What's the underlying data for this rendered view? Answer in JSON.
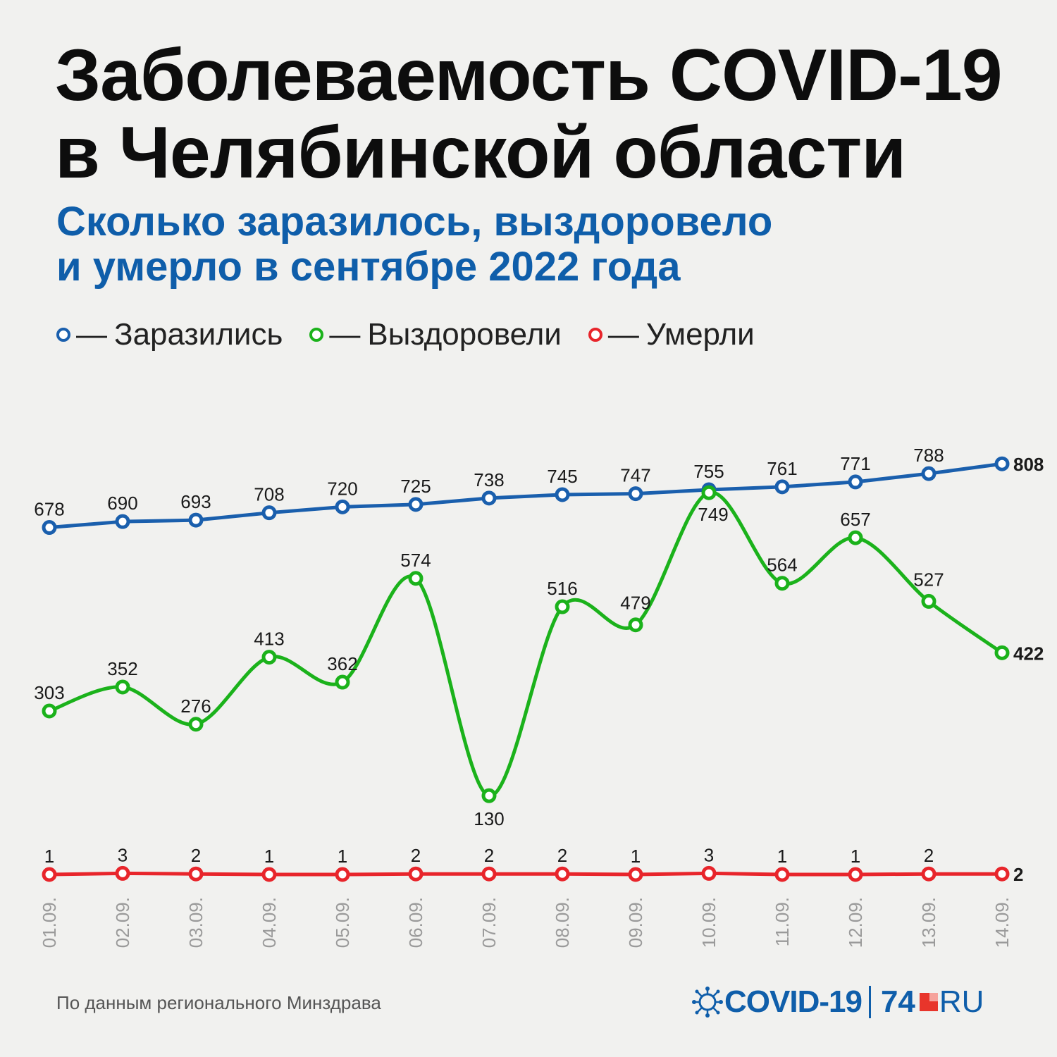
{
  "title": {
    "line1": "Заболеваемость COVID-19",
    "line2": "в Челябинской области"
  },
  "subtitle": {
    "line1": "Сколько заразилось, выздоровело",
    "line2": "и умерло в сентябре 2022 года"
  },
  "legend": [
    {
      "label": "Заразились",
      "color": "#1a5fad"
    },
    {
      "label": "Выздоровели",
      "color": "#1bb21b"
    },
    {
      "label": "Умерли",
      "color": "#e8252b"
    }
  ],
  "legend_dash": "—",
  "source": "По данным регионального Минздрава",
  "logo": {
    "covid": "COVID-19",
    "number": "74",
    "ru": "RU"
  },
  "chart_data": {
    "type": "line",
    "categories": [
      "01.09.",
      "02.09.",
      "03.09.",
      "04.09.",
      "05.09.",
      "06.09.",
      "07.09.",
      "08.09.",
      "09.09.",
      "10.09.",
      "11.09.",
      "12.09.",
      "13.09.",
      "14.09."
    ],
    "series": [
      {
        "name": "Заразились",
        "color": "#1a5fad",
        "values": [
          678,
          690,
          693,
          708,
          720,
          725,
          738,
          745,
          747,
          755,
          761,
          771,
          788,
          808
        ]
      },
      {
        "name": "Выздоровели",
        "color": "#1bb21b",
        "values": [
          303,
          352,
          276,
          413,
          362,
          574,
          130,
          516,
          479,
          749,
          564,
          657,
          527,
          422
        ]
      },
      {
        "name": "Умерли",
        "color": "#e8252b",
        "values": [
          1,
          3,
          2,
          1,
          1,
          2,
          2,
          2,
          1,
          3,
          1,
          1,
          2,
          2
        ]
      }
    ],
    "legend_position": "top-left",
    "grid": false
  }
}
